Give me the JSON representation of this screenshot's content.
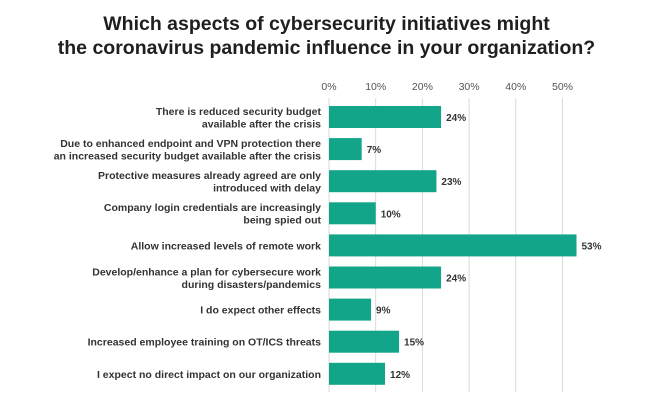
{
  "chart_data": {
    "type": "bar",
    "orientation": "horizontal",
    "title": [
      "Which aspects of cybersecurity initiatives might",
      "the coronavirus pandemic influence in your organization?"
    ],
    "xlabel": "",
    "ylabel": "",
    "xlim": [
      0,
      55
    ],
    "ticks": [
      "0%",
      "10%",
      "20%",
      "30%",
      "40%",
      "50%"
    ],
    "tick_values": [
      0,
      10,
      20,
      30,
      40,
      50
    ],
    "grid": true,
    "bar_color": "#12a58a",
    "categories": [
      [
        "There is reduced security budget",
        "available after the crisis"
      ],
      [
        "Due to enhanced endpoint and VPN protection there",
        "an increased security budget available after the crisis"
      ],
      [
        "Protective measures already agreed are only",
        "introduced with delay"
      ],
      [
        "Company login credentials are increasingly",
        "being spied out"
      ],
      [
        "Allow increased levels of remote work"
      ],
      [
        "Develop/enhance a plan for cybersecure work",
        "during disasters/pandemics"
      ],
      [
        "I do expect other effects"
      ],
      [
        "Increased employee training on OT/ICS threats"
      ],
      [
        "I expect no direct impact on our organization"
      ]
    ],
    "values": [
      24,
      7,
      23,
      10,
      53,
      24,
      9,
      15,
      12
    ],
    "value_labels": [
      "24%",
      "7%",
      "23%",
      "10%",
      "53%",
      "24%",
      "9%",
      "15%",
      "12%"
    ]
  }
}
